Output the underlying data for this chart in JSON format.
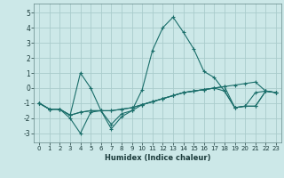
{
  "title": "",
  "xlabel": "Humidex (Indice chaleur)",
  "ylabel": "",
  "bg_color": "#cce8e8",
  "grid_color": "#aacccc",
  "line_color": "#1a6e6a",
  "xlim": [
    -0.5,
    23.5
  ],
  "ylim": [
    -3.6,
    5.6
  ],
  "xticks": [
    0,
    1,
    2,
    3,
    4,
    5,
    6,
    7,
    8,
    9,
    10,
    11,
    12,
    13,
    14,
    15,
    16,
    17,
    18,
    19,
    20,
    21,
    22,
    23
  ],
  "yticks": [
    -3,
    -2,
    -1,
    0,
    1,
    2,
    3,
    4,
    5
  ],
  "series_x": [
    0,
    1,
    2,
    3,
    4,
    5,
    6,
    7,
    8,
    9,
    10,
    11,
    12,
    13,
    14,
    15,
    16,
    17,
    18,
    19,
    20,
    21,
    22,
    23
  ],
  "series": [
    [
      -1.0,
      -1.4,
      -1.4,
      -1.8,
      1.0,
      0.0,
      -1.5,
      -2.4,
      -1.7,
      -1.5,
      -0.1,
      2.5,
      4.0,
      4.7,
      3.7,
      2.6,
      1.1,
      0.7,
      -0.2,
      -1.3,
      -1.2,
      -0.3,
      -0.2,
      -0.3
    ],
    [
      -1.0,
      -1.4,
      -1.4,
      -1.8,
      -1.6,
      -1.5,
      -1.5,
      -1.5,
      -1.4,
      -1.3,
      -1.1,
      -0.9,
      -0.7,
      -0.5,
      -0.3,
      -0.2,
      -0.1,
      0.0,
      0.1,
      0.2,
      0.3,
      0.4,
      -0.2,
      -0.3
    ],
    [
      -1.0,
      -1.4,
      -1.4,
      -2.0,
      -3.0,
      -1.6,
      -1.5,
      -2.7,
      -1.9,
      -1.5,
      -1.1,
      -0.9,
      -0.7,
      -0.5,
      -0.3,
      -0.2,
      -0.1,
      0.0,
      0.1,
      -1.3,
      -1.2,
      -1.2,
      -0.2,
      -0.3
    ],
    [
      -1.0,
      -1.4,
      -1.4,
      -1.8,
      -1.6,
      -1.5,
      -1.5,
      -1.5,
      -1.4,
      -1.3,
      -1.1,
      -0.9,
      -0.7,
      -0.5,
      -0.3,
      -0.2,
      -0.1,
      0.0,
      -0.2,
      -1.3,
      -1.2,
      -1.2,
      -0.2,
      -0.3
    ]
  ]
}
